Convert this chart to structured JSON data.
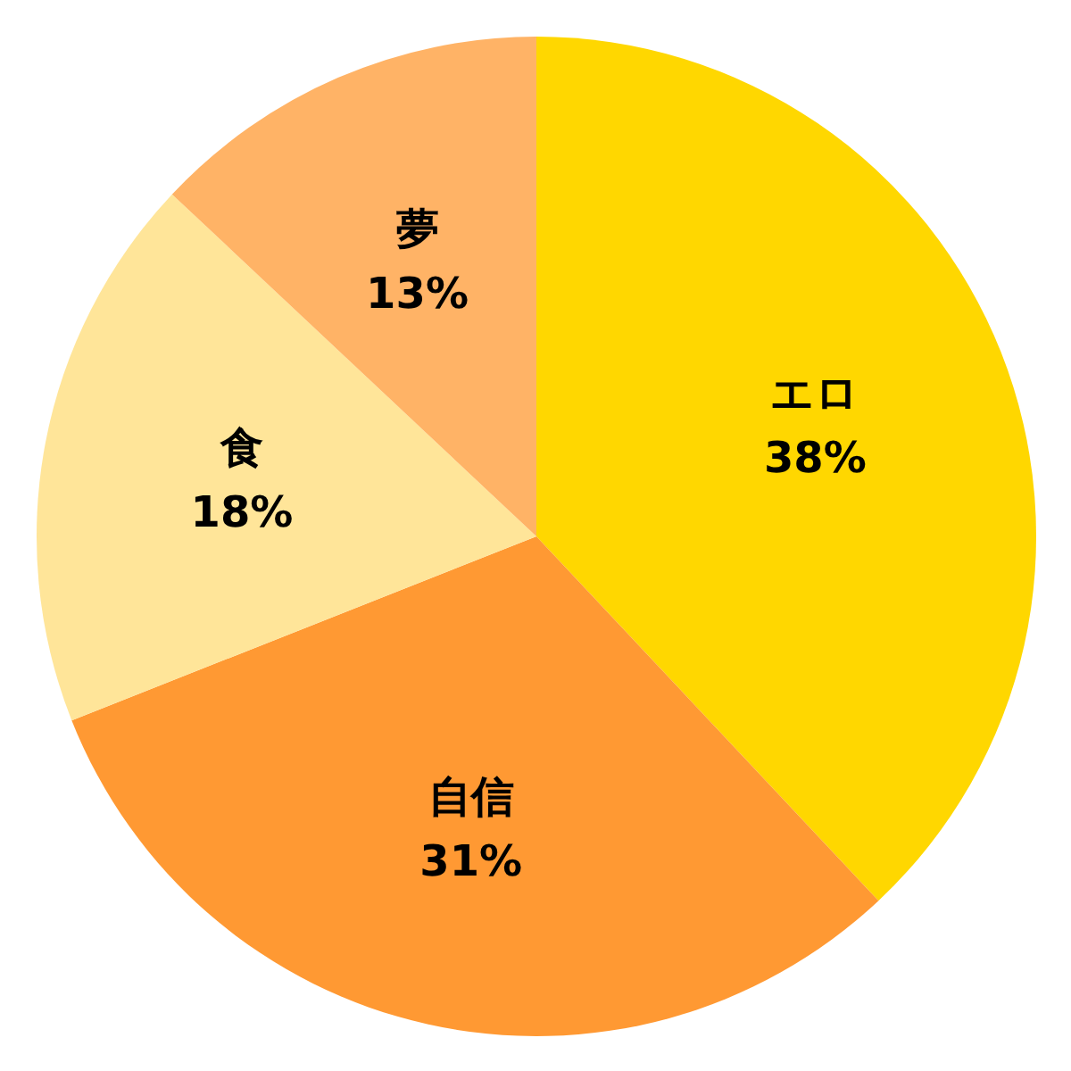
{
  "chart_data": {
    "type": "pie",
    "categories": [
      "エロ",
      "自信",
      "食",
      "夢"
    ],
    "values": [
      38,
      31,
      18,
      13
    ],
    "colors": [
      "#ffd700",
      "#ff9933",
      "#ffe599",
      "#ffb366"
    ],
    "value_labels": [
      "38%",
      "31%",
      "18%",
      "13%"
    ]
  }
}
